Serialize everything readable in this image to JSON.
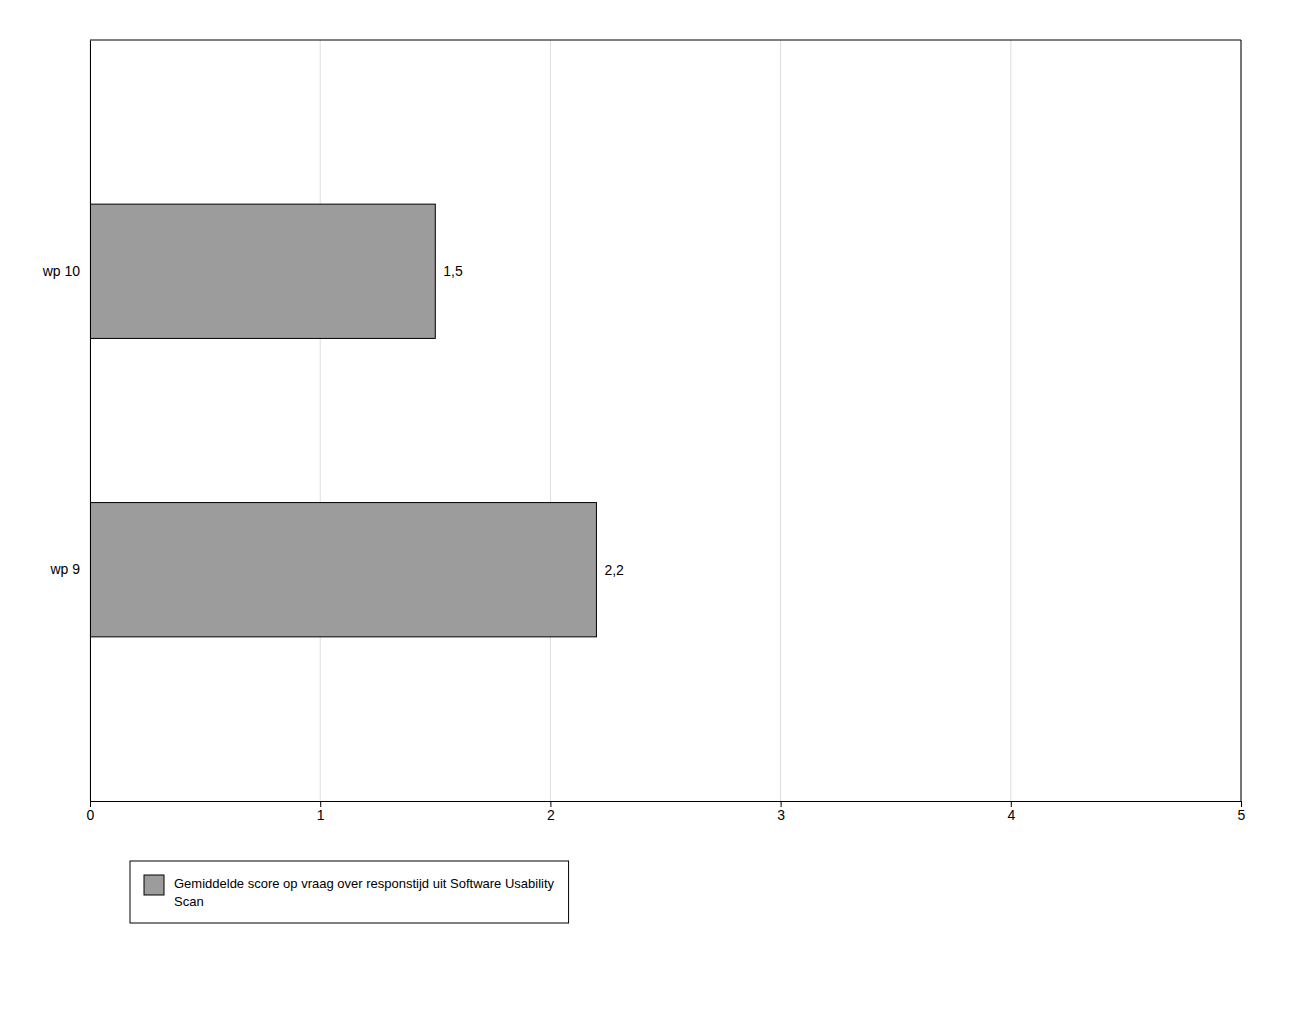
{
  "chart_data": {
    "type": "bar",
    "orientation": "horizontal",
    "categories": [
      "wp 9",
      "wp 10"
    ],
    "series": [
      {
        "name": "Gemiddelde score op vraag over responstijd uit Software Usability\nScan",
        "color": "#9c9c9c",
        "values": [
          2.2,
          1.5
        ],
        "value_labels": [
          "2,2",
          "1,5"
        ]
      }
    ],
    "data_labels": true,
    "xlim": [
      0,
      5
    ],
    "xticks": [
      0,
      1,
      2,
      3,
      4,
      5
    ],
    "grid": true,
    "legend": "bottom"
  }
}
